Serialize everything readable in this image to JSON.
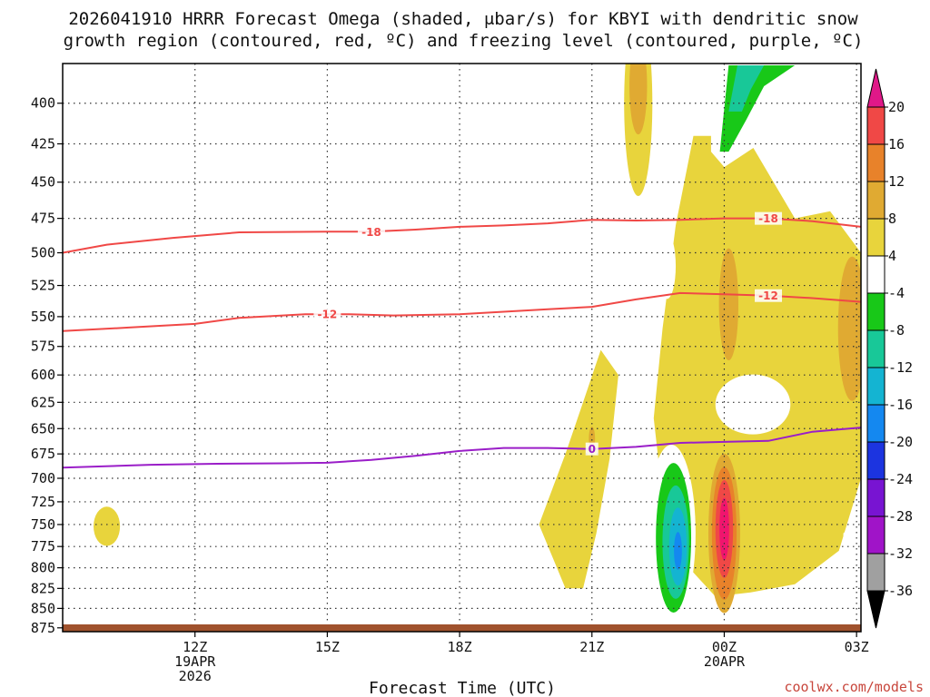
{
  "title_line1": "2026041910 HRRR Forecast Omega (shaded, μbar/s) for KBYI with dendritic snow",
  "title_line2": "growth region (contoured, red, ºC) and freezing level (contoured, purple, ºC)",
  "xlabel": "Forecast Time (UTC)",
  "credit": "coolwx.com/models",
  "chart_data": {
    "type": "heatmap",
    "x_range_hours": [
      9.0,
      27.1
    ],
    "y_range_hpa": [
      377,
      880
    ],
    "y_scale": "log-pressure",
    "grid": true,
    "y_ticks": [
      400,
      425,
      450,
      475,
      500,
      525,
      550,
      575,
      600,
      625,
      650,
      675,
      700,
      725,
      750,
      775,
      800,
      825,
      850,
      875
    ],
    "x_ticks": [
      {
        "hour": 12,
        "label": "12Z",
        "sub1": "19APR",
        "sub2": "2026"
      },
      {
        "hour": 15,
        "label": "15Z",
        "sub1": "",
        "sub2": ""
      },
      {
        "hour": 18,
        "label": "18Z",
        "sub1": "",
        "sub2": ""
      },
      {
        "hour": 21,
        "label": "21Z",
        "sub1": "",
        "sub2": ""
      },
      {
        "hour": 24,
        "label": "00Z",
        "sub1": "20APR",
        "sub2": ""
      },
      {
        "hour": 27,
        "label": "03Z",
        "sub1": "",
        "sub2": ""
      }
    ],
    "colorbar": {
      "levels": [
        20,
        16,
        12,
        8,
        4,
        -4,
        -8,
        -12,
        -16,
        -20,
        -24,
        -28,
        -32,
        -36
      ],
      "colors": [
        "#f0156e",
        "#f04846",
        "#e8822a",
        "#e0aa32",
        "#e8d43c",
        "#ffffff",
        "#18c818",
        "#18c898",
        "#14b4d2",
        "#1488f0",
        "#1c34e0",
        "#7814d2",
        "#a014c8",
        "#a0a0a0",
        "#000000"
      ],
      "top_arrow_color": "#e01888",
      "bottom_arrow_color": "#000000"
    },
    "contours": [
      {
        "label": "-18",
        "color": "#f04846",
        "points": [
          [
            9.0,
            500
          ],
          [
            10.0,
            494
          ],
          [
            11.5,
            489
          ],
          [
            13.0,
            485
          ],
          [
            15.0,
            484.5
          ],
          [
            16.0,
            484.5
          ],
          [
            17.0,
            483
          ],
          [
            18.0,
            481
          ],
          [
            19.0,
            480
          ],
          [
            20.0,
            478.5
          ],
          [
            21.0,
            476
          ],
          [
            22.0,
            476.5
          ],
          [
            23.0,
            476
          ],
          [
            24.0,
            475
          ],
          [
            25.0,
            475
          ],
          [
            26.0,
            477
          ],
          [
            27.1,
            481
          ]
        ]
      },
      {
        "label": "-12",
        "color": "#f04846",
        "points": [
          [
            9.0,
            562
          ],
          [
            10.5,
            559
          ],
          [
            12.0,
            556
          ],
          [
            13.0,
            551
          ],
          [
            14.5,
            548
          ],
          [
            15.5,
            548
          ],
          [
            16.5,
            549
          ],
          [
            18.0,
            548
          ],
          [
            19.0,
            546
          ],
          [
            20.0,
            544
          ],
          [
            21.0,
            542
          ],
          [
            22.0,
            536
          ],
          [
            23.0,
            531
          ],
          [
            24.0,
            532
          ],
          [
            25.0,
            533
          ],
          [
            26.0,
            535
          ],
          [
            27.1,
            538
          ]
        ]
      },
      {
        "label": "0",
        "color": "#9a1ec8",
        "points": [
          [
            9.0,
            689
          ],
          [
            11.0,
            686
          ],
          [
            12.5,
            685
          ],
          [
            14.0,
            684.5
          ],
          [
            15.0,
            684
          ],
          [
            16.0,
            681
          ],
          [
            17.0,
            677
          ],
          [
            18.0,
            672
          ],
          [
            19.0,
            669
          ],
          [
            20.0,
            669
          ],
          [
            21.0,
            670
          ],
          [
            22.0,
            668
          ],
          [
            23.0,
            664
          ],
          [
            24.0,
            663
          ],
          [
            25.0,
            662
          ],
          [
            26.0,
            653
          ],
          [
            27.1,
            649
          ]
        ]
      }
    ],
    "omega_regions": [
      {
        "level": "4",
        "shape": "poly",
        "points": [
          [
            20.4,
            825
          ],
          [
            19.8,
            750
          ],
          [
            20.4,
            675
          ],
          [
            20.8,
            625
          ],
          [
            21.2,
            578
          ],
          [
            21.6,
            600
          ],
          [
            21.4,
            680
          ],
          [
            21.1,
            760
          ],
          [
            20.8,
            825
          ]
        ]
      },
      {
        "level": "4",
        "shape": "poly",
        "points": [
          [
            23.2,
            800
          ],
          [
            22.6,
            720
          ],
          [
            22.4,
            640
          ],
          [
            22.6,
            560
          ],
          [
            22.9,
            480
          ],
          [
            23.3,
            420
          ],
          [
            24.5,
            420
          ],
          [
            25.6,
            475
          ],
          [
            26.4,
            470
          ],
          [
            27.1,
            500
          ],
          [
            27.1,
            700
          ],
          [
            26.6,
            780
          ],
          [
            25.6,
            820
          ],
          [
            24.6,
            830
          ],
          [
            23.8,
            835
          ]
        ]
      },
      {
        "level": "4",
        "shape": "ellipse",
        "cx": 22.05,
        "cy": 400,
        "rx": 0.32,
        "ry": 55
      },
      {
        "level": "4",
        "shape": "ellipse",
        "cx": 10.0,
        "cy": 752,
        "rx": 0.3,
        "ry": 22
      },
      {
        "level": "-4",
        "shape": "ellipse",
        "cx": 24.65,
        "cy": 627,
        "rx": 0.85,
        "ry": 28
      },
      {
        "level": "8",
        "shape": "ellipse",
        "cx": 22.05,
        "cy": 390,
        "rx": 0.2,
        "ry": 28
      },
      {
        "level": "8",
        "shape": "ellipse",
        "cx": 24.1,
        "cy": 540,
        "rx": 0.22,
        "ry": 45
      },
      {
        "level": "8",
        "shape": "ellipse",
        "cx": 26.9,
        "cy": 560,
        "rx": 0.32,
        "ry": 60
      },
      {
        "level": "8",
        "shape": "ellipse",
        "cx": 21.0,
        "cy": 660,
        "rx": 0.07,
        "ry": 12
      },
      {
        "level": "8",
        "shape": "ellipse",
        "cx": 24.0,
        "cy": 760,
        "rx": 0.36,
        "ry": 90
      },
      {
        "level": "12",
        "shape": "ellipse",
        "cx": 24.0,
        "cy": 760,
        "rx": 0.28,
        "ry": 75
      },
      {
        "level": "16",
        "shape": "ellipse",
        "cx": 24.0,
        "cy": 755,
        "rx": 0.2,
        "ry": 55
      },
      {
        "level": "20",
        "shape": "ellipse",
        "cx": 24.0,
        "cy": 755,
        "rx": 0.11,
        "ry": 35
      },
      {
        "level": "-4",
        "shape": "ellipse",
        "cx": 22.8,
        "cy": 760,
        "rx": 0.55,
        "ry": 100
      },
      {
        "level": "-8",
        "shape": "ellipse",
        "cx": 22.85,
        "cy": 765,
        "rx": 0.4,
        "ry": 85
      },
      {
        "level": "-12",
        "shape": "ellipse",
        "cx": 22.9,
        "cy": 770,
        "rx": 0.3,
        "ry": 65
      },
      {
        "level": "-16",
        "shape": "ellipse",
        "cx": 22.95,
        "cy": 775,
        "rx": 0.2,
        "ry": 45
      },
      {
        "level": "-20",
        "shape": "ellipse",
        "cx": 22.95,
        "cy": 780,
        "rx": 0.09,
        "ry": 22
      },
      {
        "level": "-4",
        "shape": "ellipse",
        "cx": 22.7,
        "cy": 510,
        "rx": 0.2,
        "ry": 25
      },
      {
        "level": "-4",
        "shape": "ellipse",
        "cx": 13.0,
        "cy": 785,
        "rx": 0.25,
        "ry": 12
      },
      {
        "level": "-4",
        "shape": "ellipse",
        "cx": 15.0,
        "cy": 752,
        "rx": 0.25,
        "ry": 16
      },
      {
        "level": "-4",
        "shape": "poly",
        "points": [
          [
            23.7,
            430
          ],
          [
            23.7,
            378
          ],
          [
            27.1,
            378
          ],
          [
            27.1,
            395
          ],
          [
            26.2,
            405
          ],
          [
            25.4,
            410
          ],
          [
            24.8,
            425
          ],
          [
            24.0,
            440
          ]
        ]
      },
      {
        "level": "-8",
        "shape": "poly",
        "points": [
          [
            23.9,
            430
          ],
          [
            24.1,
            378
          ],
          [
            25.6,
            378
          ],
          [
            24.9,
            390
          ],
          [
            24.5,
            410
          ],
          [
            24.1,
            430
          ]
        ]
      },
      {
        "level": "-12",
        "shape": "poly",
        "points": [
          [
            24.1,
            405
          ],
          [
            24.3,
            378
          ],
          [
            24.9,
            378
          ],
          [
            24.6,
            392
          ],
          [
            24.4,
            405
          ]
        ]
      },
      {
        "level": "-4",
        "shape": "poly",
        "points": [
          [
            27.1,
            740
          ],
          [
            26.7,
            760
          ],
          [
            26.7,
            780
          ],
          [
            27.1,
            805
          ]
        ]
      },
      {
        "level": "-4",
        "shape": "poly",
        "points": [
          [
            27.1,
            860
          ],
          [
            26.6,
            867
          ],
          [
            27.1,
            875
          ]
        ]
      }
    ],
    "surface": {
      "color": "#a0522d",
      "note": "terrain"
    }
  }
}
